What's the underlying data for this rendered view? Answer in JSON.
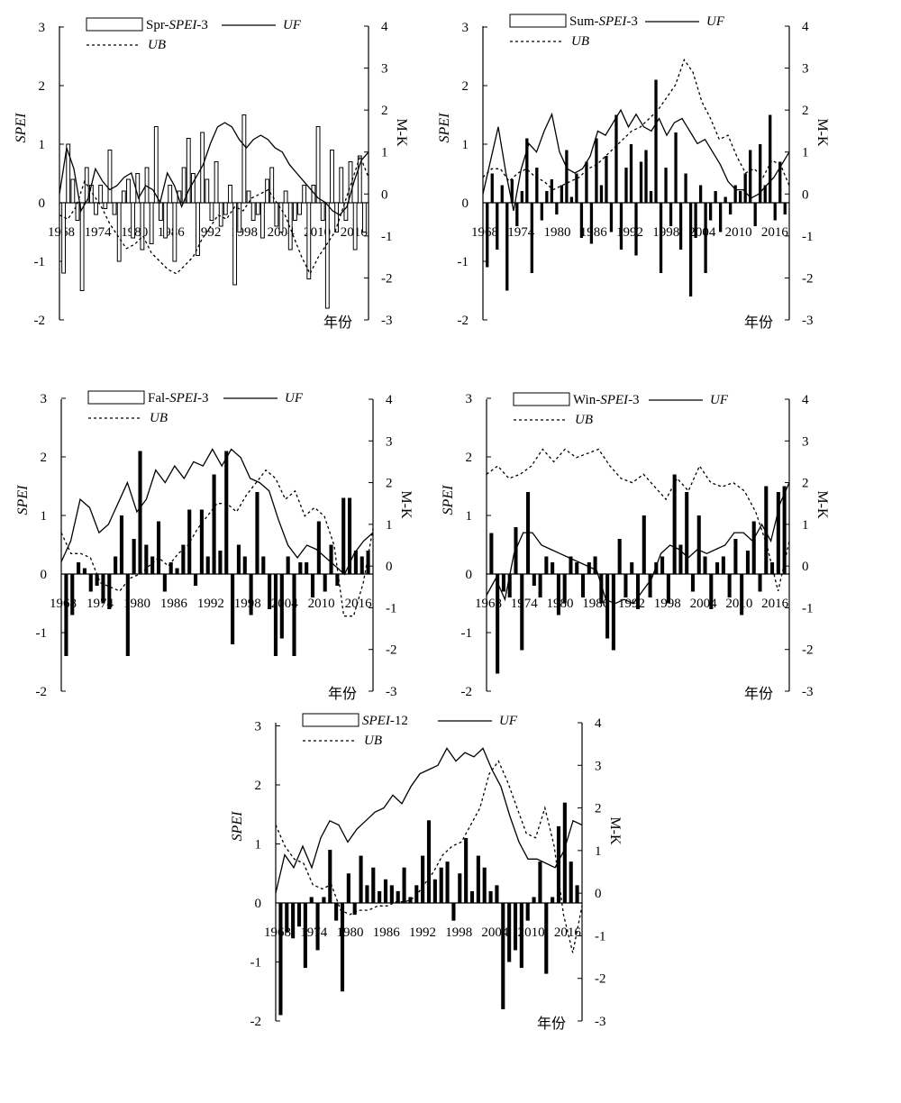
{
  "colors": {
    "bar_positive": "#000000",
    "axis": "#000000",
    "background": "#ffffff"
  },
  "chart_data": [
    {
      "type": "bar",
      "legend": {
        "bar": [
          "Spr-",
          "SPEI",
          "-3"
        ],
        "uf": "UF",
        "ub": "UB"
      },
      "left_axis_label": "SPEI",
      "right_axis_label": "M-K",
      "x_axis_label": "年份",
      "ylim_left": [
        -2,
        3
      ],
      "ylim_right": [
        -3,
        4
      ],
      "yticks_left": [
        "-2",
        "-1",
        "0",
        "1",
        "2",
        "3"
      ],
      "yticks_right": [
        "-3",
        "-2",
        "-1",
        "0",
        "1",
        "2",
        "3",
        "4"
      ],
      "xtick_labels": [
        "1968",
        "1974",
        "1980",
        "1986",
        "1992",
        "1998",
        "2004",
        "2010",
        "2016"
      ],
      "bar_style": "hollow",
      "years_range": [
        1968,
        2019
      ],
      "bar_values": [
        -1.2,
        1.0,
        0.4,
        -0.3,
        -1.5,
        0.6,
        0.3,
        -0.2,
        0.3,
        -0.1,
        0.9,
        -0.2,
        -1.0,
        0.2,
        0.4,
        -0.6,
        0.5,
        -0.8,
        0.6,
        -0.7,
        1.3,
        -0.3,
        -0.6,
        0.3,
        -1.0,
        0.2,
        0.6,
        1.1,
        0.5,
        -0.9,
        1.2,
        0.4,
        -0.3,
        0.7,
        -0.4,
        -0.2,
        0.3,
        -1.4,
        -0.5,
        1.5,
        0.2,
        -0.3,
        -0.2,
        -0.6,
        0.4,
        0.6,
        -0.4,
        -0.5,
        0.2,
        -0.8,
        -0.3,
        -0.2,
        0.3,
        -1.3,
        0.3,
        1.3,
        -0.3,
        -1.8,
        0.9,
        -0.5,
        0.6,
        -0.3,
        0.7,
        -0.8,
        0.8,
        -0.5
      ],
      "uf": [
        0,
        1.1,
        0.6,
        -0.4,
        -0.1,
        0.6,
        0.3,
        0.1,
        0.2,
        0.4,
        0.5,
        -0.1,
        0.2,
        0.1,
        -0.2,
        0.5,
        0.2,
        -0.3,
        0.1,
        0.4,
        0.7,
        1.2,
        1.6,
        1.7,
        1.6,
        1.3,
        1.1,
        1.3,
        1.4,
        1.3,
        1.1,
        1.0,
        0.7,
        0.5,
        0.3,
        0.1,
        -0.1,
        -0.2,
        -0.4,
        -0.5,
        -0.3,
        0.3,
        0.8,
        1.0
      ],
      "ub": [
        -0.5,
        -0.6,
        -0.3,
        0.3,
        0.0,
        -0.3,
        -0.7,
        -1.0,
        -1.3,
        -1.2,
        -1.0,
        -1.4,
        -1.6,
        -1.8,
        -1.9,
        -1.7,
        -1.5,
        -1.1,
        -0.8,
        -0.5,
        -0.6,
        -0.3,
        -0.4,
        -0.1,
        0.0,
        0.1,
        -0.2,
        -0.5,
        -1.0,
        -1.5,
        -1.9,
        -1.5,
        -1.2,
        -0.9,
        -0.3,
        0.3,
        0.9,
        0.4
      ]
    },
    {
      "type": "bar",
      "legend": {
        "bar": [
          "Sum-",
          "SPEI",
          "-3"
        ],
        "uf": "UF",
        "ub": "UB"
      },
      "left_axis_label": "SPEI",
      "right_axis_label": "M-K",
      "x_axis_label": "年份",
      "ylim_left": [
        -2,
        3
      ],
      "ylim_right": [
        -3,
        4
      ],
      "yticks_left": [
        "-2",
        "-1",
        "0",
        "1",
        "2",
        "3"
      ],
      "yticks_right": [
        "-3",
        "-2",
        "-1",
        "0",
        "1",
        "2",
        "3",
        "4"
      ],
      "xtick_labels": [
        "1968",
        "1974",
        "1980",
        "1986",
        "1992",
        "1998",
        "2004",
        "2010",
        "2016"
      ],
      "bar_style": "solid",
      "years_range": [
        1968,
        2019
      ],
      "bar_values": [
        -1.1,
        0.5,
        -0.8,
        0.3,
        -1.5,
        0.4,
        -0.4,
        0.2,
        1.1,
        -1.2,
        0.6,
        -0.3,
        0.2,
        0.4,
        -0.2,
        0.3,
        0.9,
        0.1,
        0.5,
        -0.6,
        0.7,
        -0.7,
        1.1,
        0.3,
        0.8,
        -0.5,
        1.5,
        -0.8,
        0.6,
        1.0,
        -0.9,
        0.7,
        0.9,
        0.2,
        2.1,
        -1.2,
        0.6,
        -0.4,
        1.2,
        -0.8,
        0.5,
        -1.6,
        -0.6,
        0.3,
        -1.2,
        -0.3,
        0.2,
        -0.5,
        0.1,
        -0.2,
        0.3,
        0.2,
        0.5,
        0.9,
        -0.4,
        1.0,
        0.3,
        1.5,
        -0.3,
        0.7,
        -0.2
      ],
      "uf": [
        0,
        0.8,
        1.6,
        0.5,
        -0.4,
        0.6,
        1.2,
        1.0,
        1.5,
        1.9,
        1.0,
        0.6,
        0.5,
        0.6,
        0.9,
        1.5,
        1.4,
        1.7,
        2.0,
        1.6,
        1.9,
        1.6,
        1.5,
        1.8,
        1.4,
        1.7,
        1.8,
        1.5,
        1.2,
        1.3,
        1.0,
        0.7,
        0.3,
        0.1,
        0.1,
        -0.1,
        0.0,
        0.2,
        0.4,
        0.7,
        1.0
      ],
      "ub": [
        0.4,
        0.6,
        0.6,
        0.3,
        0.5,
        0.6,
        0.4,
        0.3,
        0.1,
        0.2,
        0.3,
        0.4,
        0.6,
        0.7,
        0.9,
        1.1,
        1.3,
        1.5,
        1.6,
        1.8,
        2.0,
        2.3,
        2.6,
        3.2,
        2.9,
        2.2,
        1.8,
        1.3,
        1.4,
        0.9,
        0.5,
        0.6,
        0.4,
        0.8,
        0.7,
        0.2
      ]
    },
    {
      "type": "bar",
      "legend": {
        "bar": [
          "Fal-",
          "SPEI",
          "-3"
        ],
        "uf": "UF",
        "ub": "UB"
      },
      "left_axis_label": "SPEI",
      "right_axis_label": "M-K",
      "x_axis_label": "年份",
      "ylim_left": [
        -2,
        3
      ],
      "ylim_right": [
        -3,
        4
      ],
      "yticks_left": [
        "-2",
        "-1",
        "0",
        "1",
        "2",
        "3"
      ],
      "yticks_right": [
        "-3",
        "-2",
        "-1",
        "0",
        "1",
        "2",
        "3",
        "4"
      ],
      "xtick_labels": [
        "1968",
        "1974",
        "1980",
        "1986",
        "1992",
        "1998",
        "2004",
        "2010",
        "2016"
      ],
      "bar_style": "solid",
      "years_range": [
        1968,
        2019
      ],
      "bar_values": [
        -1.4,
        -0.7,
        0.2,
        0.1,
        -0.3,
        -0.2,
        -0.5,
        -0.6,
        0.3,
        1.0,
        -1.4,
        0.6,
        2.1,
        0.5,
        0.3,
        0.9,
        -0.3,
        0.2,
        0.1,
        0.5,
        1.1,
        -0.2,
        1.1,
        0.3,
        1.7,
        0.4,
        2.1,
        -1.2,
        0.5,
        0.3,
        -0.7,
        1.4,
        0.3,
        -0.6,
        -1.4,
        -1.1,
        0.3,
        -1.4,
        0.2,
        0.2,
        -0.4,
        0.9,
        -0.3,
        0.5,
        -0.2,
        1.3,
        1.3,
        0.4,
        0.3,
        0.4
      ],
      "uf": [
        0.1,
        0.6,
        1.6,
        1.4,
        0.8,
        1.0,
        1.5,
        2.0,
        1.3,
        1.6,
        2.3,
        2.0,
        2.4,
        2.1,
        2.5,
        2.4,
        2.8,
        2.4,
        2.8,
        2.6,
        2.1,
        2.0,
        1.8,
        1.1,
        0.5,
        0.2,
        0.5,
        0.4,
        0.2,
        0.0,
        -0.2,
        0.3,
        0.6,
        0.8
      ],
      "ub": [
        0.8,
        0.3,
        0.3,
        0.2,
        -0.4,
        -0.5,
        -0.6,
        -0.3,
        -0.2,
        0.0,
        0.2,
        0.0,
        0.3,
        0.5,
        0.9,
        1.2,
        1.5,
        1.5,
        1.3,
        1.7,
        2.0,
        2.3,
        2.1,
        1.6,
        1.8,
        1.2,
        1.4,
        1.2,
        0.5,
        -1.2,
        -1.2,
        -0.4,
        0.9
      ]
    },
    {
      "type": "bar",
      "legend": {
        "bar": [
          "Win-",
          "SPEI",
          "-3"
        ],
        "uf": "UF",
        "ub": "UB"
      },
      "left_axis_label": "SPEI",
      "right_axis_label": "M-K",
      "x_axis_label": "年份",
      "ylim_left": [
        -2,
        3
      ],
      "ylim_right": [
        -3,
        4
      ],
      "yticks_left": [
        "-2",
        "-1",
        "0",
        "1",
        "2",
        "3"
      ],
      "yticks_right": [
        "-3",
        "-2",
        "-1",
        "0",
        "1",
        "2",
        "3",
        "4"
      ],
      "xtick_labels": [
        "1968",
        "1974",
        "1980",
        "1986",
        "1992",
        "1998",
        "2004",
        "2010",
        "2016"
      ],
      "bar_style": "solid",
      "years_range": [
        1968,
        2019
      ],
      "bar_values": [
        0.7,
        -1.7,
        -0.3,
        -0.4,
        0.8,
        -1.3,
        1.4,
        -0.2,
        -0.4,
        0.3,
        0.2,
        -0.7,
        -0.5,
        0.3,
        0.2,
        -0.4,
        0.2,
        0.3,
        -0.5,
        -1.1,
        -1.3,
        0.6,
        -0.4,
        0.2,
        -0.6,
        1.0,
        -0.4,
        0.2,
        0.3,
        -0.5,
        1.7,
        0.5,
        1.4,
        -0.3,
        1.0,
        0.3,
        -0.6,
        0.2,
        0.3,
        -0.4,
        0.6,
        -0.7,
        0.4,
        0.9,
        -0.3,
        1.5,
        0.2,
        1.4,
        1.5
      ],
      "uf": [
        -0.7,
        -0.3,
        -0.8,
        0.3,
        0.8,
        0.8,
        0.5,
        0.4,
        0.3,
        0.2,
        0.1,
        0.0,
        -0.1,
        -0.8,
        -0.9,
        -0.8,
        -0.9,
        -0.6,
        -0.3,
        0.3,
        0.5,
        0.4,
        0.2,
        0.4,
        0.3,
        0.4,
        0.5,
        0.8,
        0.8,
        0.6,
        1.0,
        0.6,
        1.5,
        2.0
      ],
      "ub": [
        2.2,
        2.4,
        2.1,
        2.2,
        2.4,
        2.8,
        2.5,
        2.8,
        2.6,
        2.7,
        2.8,
        2.4,
        2.1,
        2.0,
        2.2,
        1.9,
        1.6,
        2.1,
        1.8,
        2.4,
        2.0,
        1.9,
        2.0,
        1.8,
        1.3,
        0.5,
        -0.6,
        0.6
      ]
    },
    {
      "type": "bar",
      "legend": {
        "bar": [
          "",
          "SPEI",
          "-12"
        ],
        "uf": "UF",
        "ub": "UB"
      },
      "left_axis_label": "SPEI",
      "right_axis_label": "M-K",
      "x_axis_label": "年份",
      "ylim_left": [
        -2,
        3
      ],
      "ylim_right": [
        -3,
        4
      ],
      "yticks_left": [
        "-2",
        "-1",
        "0",
        "1",
        "2",
        "3"
      ],
      "yticks_right": [
        "-3",
        "-2",
        "-1",
        "0",
        "1",
        "2",
        "3",
        "4"
      ],
      "xtick_labels": [
        "1968",
        "1974",
        "1980",
        "1986",
        "1992",
        "1998",
        "2004",
        "2010",
        "2016"
      ],
      "bar_style": "solid",
      "years_range": [
        1968,
        2019
      ],
      "bar_values": [
        -1.9,
        -0.5,
        -0.6,
        -0.4,
        -1.1,
        0.1,
        -0.8,
        0.1,
        0.9,
        -0.3,
        -1.5,
        0.5,
        -0.2,
        0.8,
        0.3,
        0.6,
        0.2,
        0.4,
        0.3,
        0.2,
        0.6,
        0.1,
        0.3,
        0.8,
        1.4,
        0.4,
        0.6,
        0.7,
        -0.3,
        0.5,
        1.1,
        0.2,
        0.8,
        0.6,
        0.2,
        0.3,
        -1.8,
        -1.0,
        -0.8,
        -1.1,
        -0.3,
        0.1,
        0.7,
        -1.2,
        0.1,
        1.3,
        1.7,
        0.7,
        0.3
      ],
      "uf": [
        0,
        0.9,
        0.6,
        1.1,
        0.6,
        1.3,
        1.7,
        1.6,
        1.2,
        1.5,
        1.7,
        1.9,
        2.0,
        2.3,
        2.1,
        2.5,
        2.8,
        2.9,
        3.0,
        3.4,
        3.1,
        3.3,
        3.2,
        3.4,
        2.9,
        2.5,
        1.8,
        1.2,
        0.8,
        0.8,
        0.7,
        0.6,
        1.0,
        1.7,
        1.6
      ],
      "ub": [
        1.6,
        1.1,
        0.8,
        0.7,
        0.2,
        0.1,
        0.2,
        -0.4,
        -0.5,
        -0.4,
        -0.4,
        -0.3,
        -0.3,
        -0.2,
        -0.2,
        -0.1,
        0.2,
        0.5,
        0.9,
        1.1,
        1.2,
        1.6,
        2.0,
        2.8,
        3.1,
        2.6,
        2.0,
        1.4,
        1.3,
        2.0,
        1.1,
        -0.5,
        -1.4,
        -0.3
      ]
    }
  ]
}
